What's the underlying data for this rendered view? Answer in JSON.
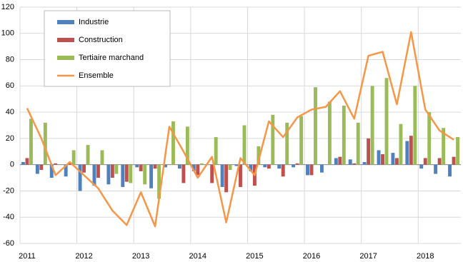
{
  "chart_data": {
    "type": "bar",
    "categories": [
      "2011",
      null,
      null,
      null,
      "2012",
      null,
      null,
      null,
      "2013",
      null,
      null,
      null,
      "2014",
      null,
      null,
      null,
      "2015",
      null,
      null,
      null,
      "2016",
      null,
      null,
      null,
      "2017",
      null,
      null,
      null,
      "2018",
      null,
      null
    ],
    "series": [
      {
        "name": "Industrie",
        "color": "#4f81bd",
        "type": "bar",
        "values": [
          2,
          -7,
          -10,
          -9,
          -20,
          -16,
          -15,
          -17,
          -2,
          -18,
          -2,
          -3,
          -5,
          0,
          -17,
          -1,
          -5,
          -2,
          -3,
          -2,
          -8,
          -6,
          5,
          4,
          2,
          11,
          9,
          18,
          -3,
          -7,
          -9
        ]
      },
      {
        "name": "Construction",
        "color": "#c0504d",
        "type": "bar",
        "values": [
          5,
          -4,
          1,
          1,
          -6,
          -10,
          -10,
          -13,
          -5,
          -3,
          0,
          -14,
          -8,
          -14,
          -21,
          -17,
          -16,
          -3,
          -9,
          1,
          -8,
          0,
          6,
          1,
          20,
          8,
          5,
          22,
          5,
          5,
          6
        ]
      },
      {
        "name": "Tertiaire marchand",
        "color": "#9bbb59",
        "type": "bar",
        "values": [
          35,
          32,
          0,
          11,
          15,
          11,
          -7,
          -14,
          -15,
          -26,
          33,
          29,
          1,
          21,
          -4,
          30,
          14,
          38,
          32,
          37,
          59,
          48,
          45,
          32,
          60,
          66,
          31,
          60,
          40,
          28,
          21
        ]
      },
      {
        "name": "Ensemble",
        "color": "#f79646",
        "type": "line",
        "values": [
          43,
          20,
          -8,
          2,
          -8,
          -18,
          -35,
          -46,
          -21,
          -47,
          29,
          10,
          -10,
          6,
          -44,
          5,
          -8,
          33,
          21,
          36,
          42,
          44,
          56,
          35,
          83,
          86,
          46,
          101,
          42,
          26,
          19
        ]
      }
    ],
    "ylim": [
      -60,
      120
    ],
    "yticks": [
      -60,
      -40,
      -20,
      0,
      20,
      40,
      60,
      80,
      100,
      120
    ],
    "grid": true
  }
}
